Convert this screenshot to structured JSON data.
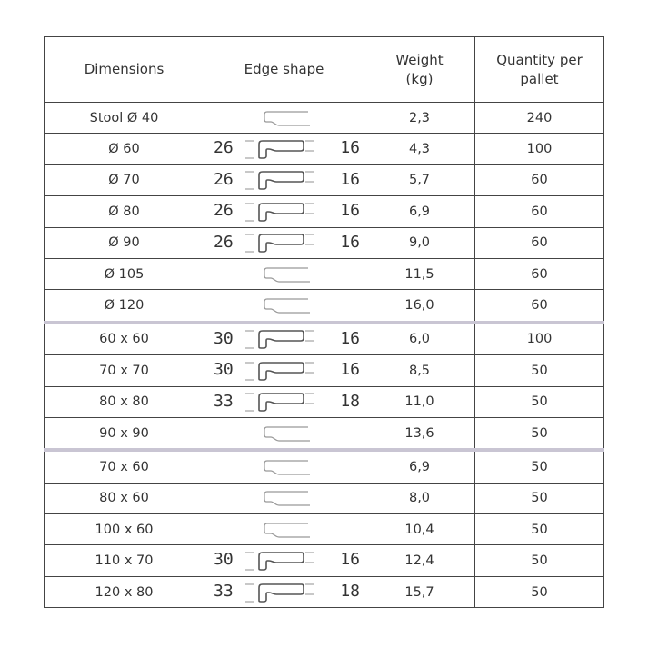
{
  "headers": [
    "Dimensions",
    "Edge shape",
    "Weight\n(kg)",
    "Quantity per\npallet"
  ],
  "rows": [
    {
      "dim": "Stool Ø 40",
      "edge": {
        "type": "outline"
      },
      "weight": "2,3",
      "qty": "240"
    },
    {
      "dim": "Ø 60",
      "edge": {
        "type": "dim",
        "left": "26",
        "right": "16"
      },
      "weight": "4,3",
      "qty": "100"
    },
    {
      "dim": "Ø 70",
      "edge": {
        "type": "dim",
        "left": "26",
        "right": "16"
      },
      "weight": "5,7",
      "qty": "60"
    },
    {
      "dim": "Ø 80",
      "edge": {
        "type": "dim",
        "left": "26",
        "right": "16"
      },
      "weight": "6,9",
      "qty": "60"
    },
    {
      "dim": "Ø 90",
      "edge": {
        "type": "dim",
        "left": "26",
        "right": "16"
      },
      "weight": "9,0",
      "qty": "60"
    },
    {
      "dim": "Ø 105",
      "edge": {
        "type": "outline"
      },
      "weight": "11,5",
      "qty": "60"
    },
    {
      "dim": "Ø 120",
      "edge": {
        "type": "outline"
      },
      "weight": "16,0",
      "qty": "60"
    },
    {
      "dim": "60 x 60",
      "edge": {
        "type": "dim",
        "left": "30",
        "right": "16"
      },
      "weight": "6,0",
      "qty": "100",
      "sep": true
    },
    {
      "dim": "70 x 70",
      "edge": {
        "type": "dim",
        "left": "30",
        "right": "16"
      },
      "weight": "8,5",
      "qty": "50"
    },
    {
      "dim": "80 x 80",
      "edge": {
        "type": "dim",
        "left": "33",
        "right": "18"
      },
      "weight": "11,0",
      "qty": "50"
    },
    {
      "dim": "90 x 90",
      "edge": {
        "type": "outline"
      },
      "weight": "13,6",
      "qty": "50"
    },
    {
      "dim": "70 x 60",
      "edge": {
        "type": "outline"
      },
      "weight": "6,9",
      "qty": "50",
      "sep": true
    },
    {
      "dim": "80 x 60",
      "edge": {
        "type": "outline"
      },
      "weight": "8,0",
      "qty": "50"
    },
    {
      "dim": "100 x 60",
      "edge": {
        "type": "outline"
      },
      "weight": "10,4",
      "qty": "50"
    },
    {
      "dim": "110 x 70",
      "edge": {
        "type": "dim",
        "left": "30",
        "right": "16"
      },
      "weight": "12,4",
      "qty": "50"
    },
    {
      "dim": "120 x 80",
      "edge": {
        "type": "dim",
        "left": "33",
        "right": "18"
      },
      "weight": "15,7",
      "qty": "50"
    }
  ]
}
